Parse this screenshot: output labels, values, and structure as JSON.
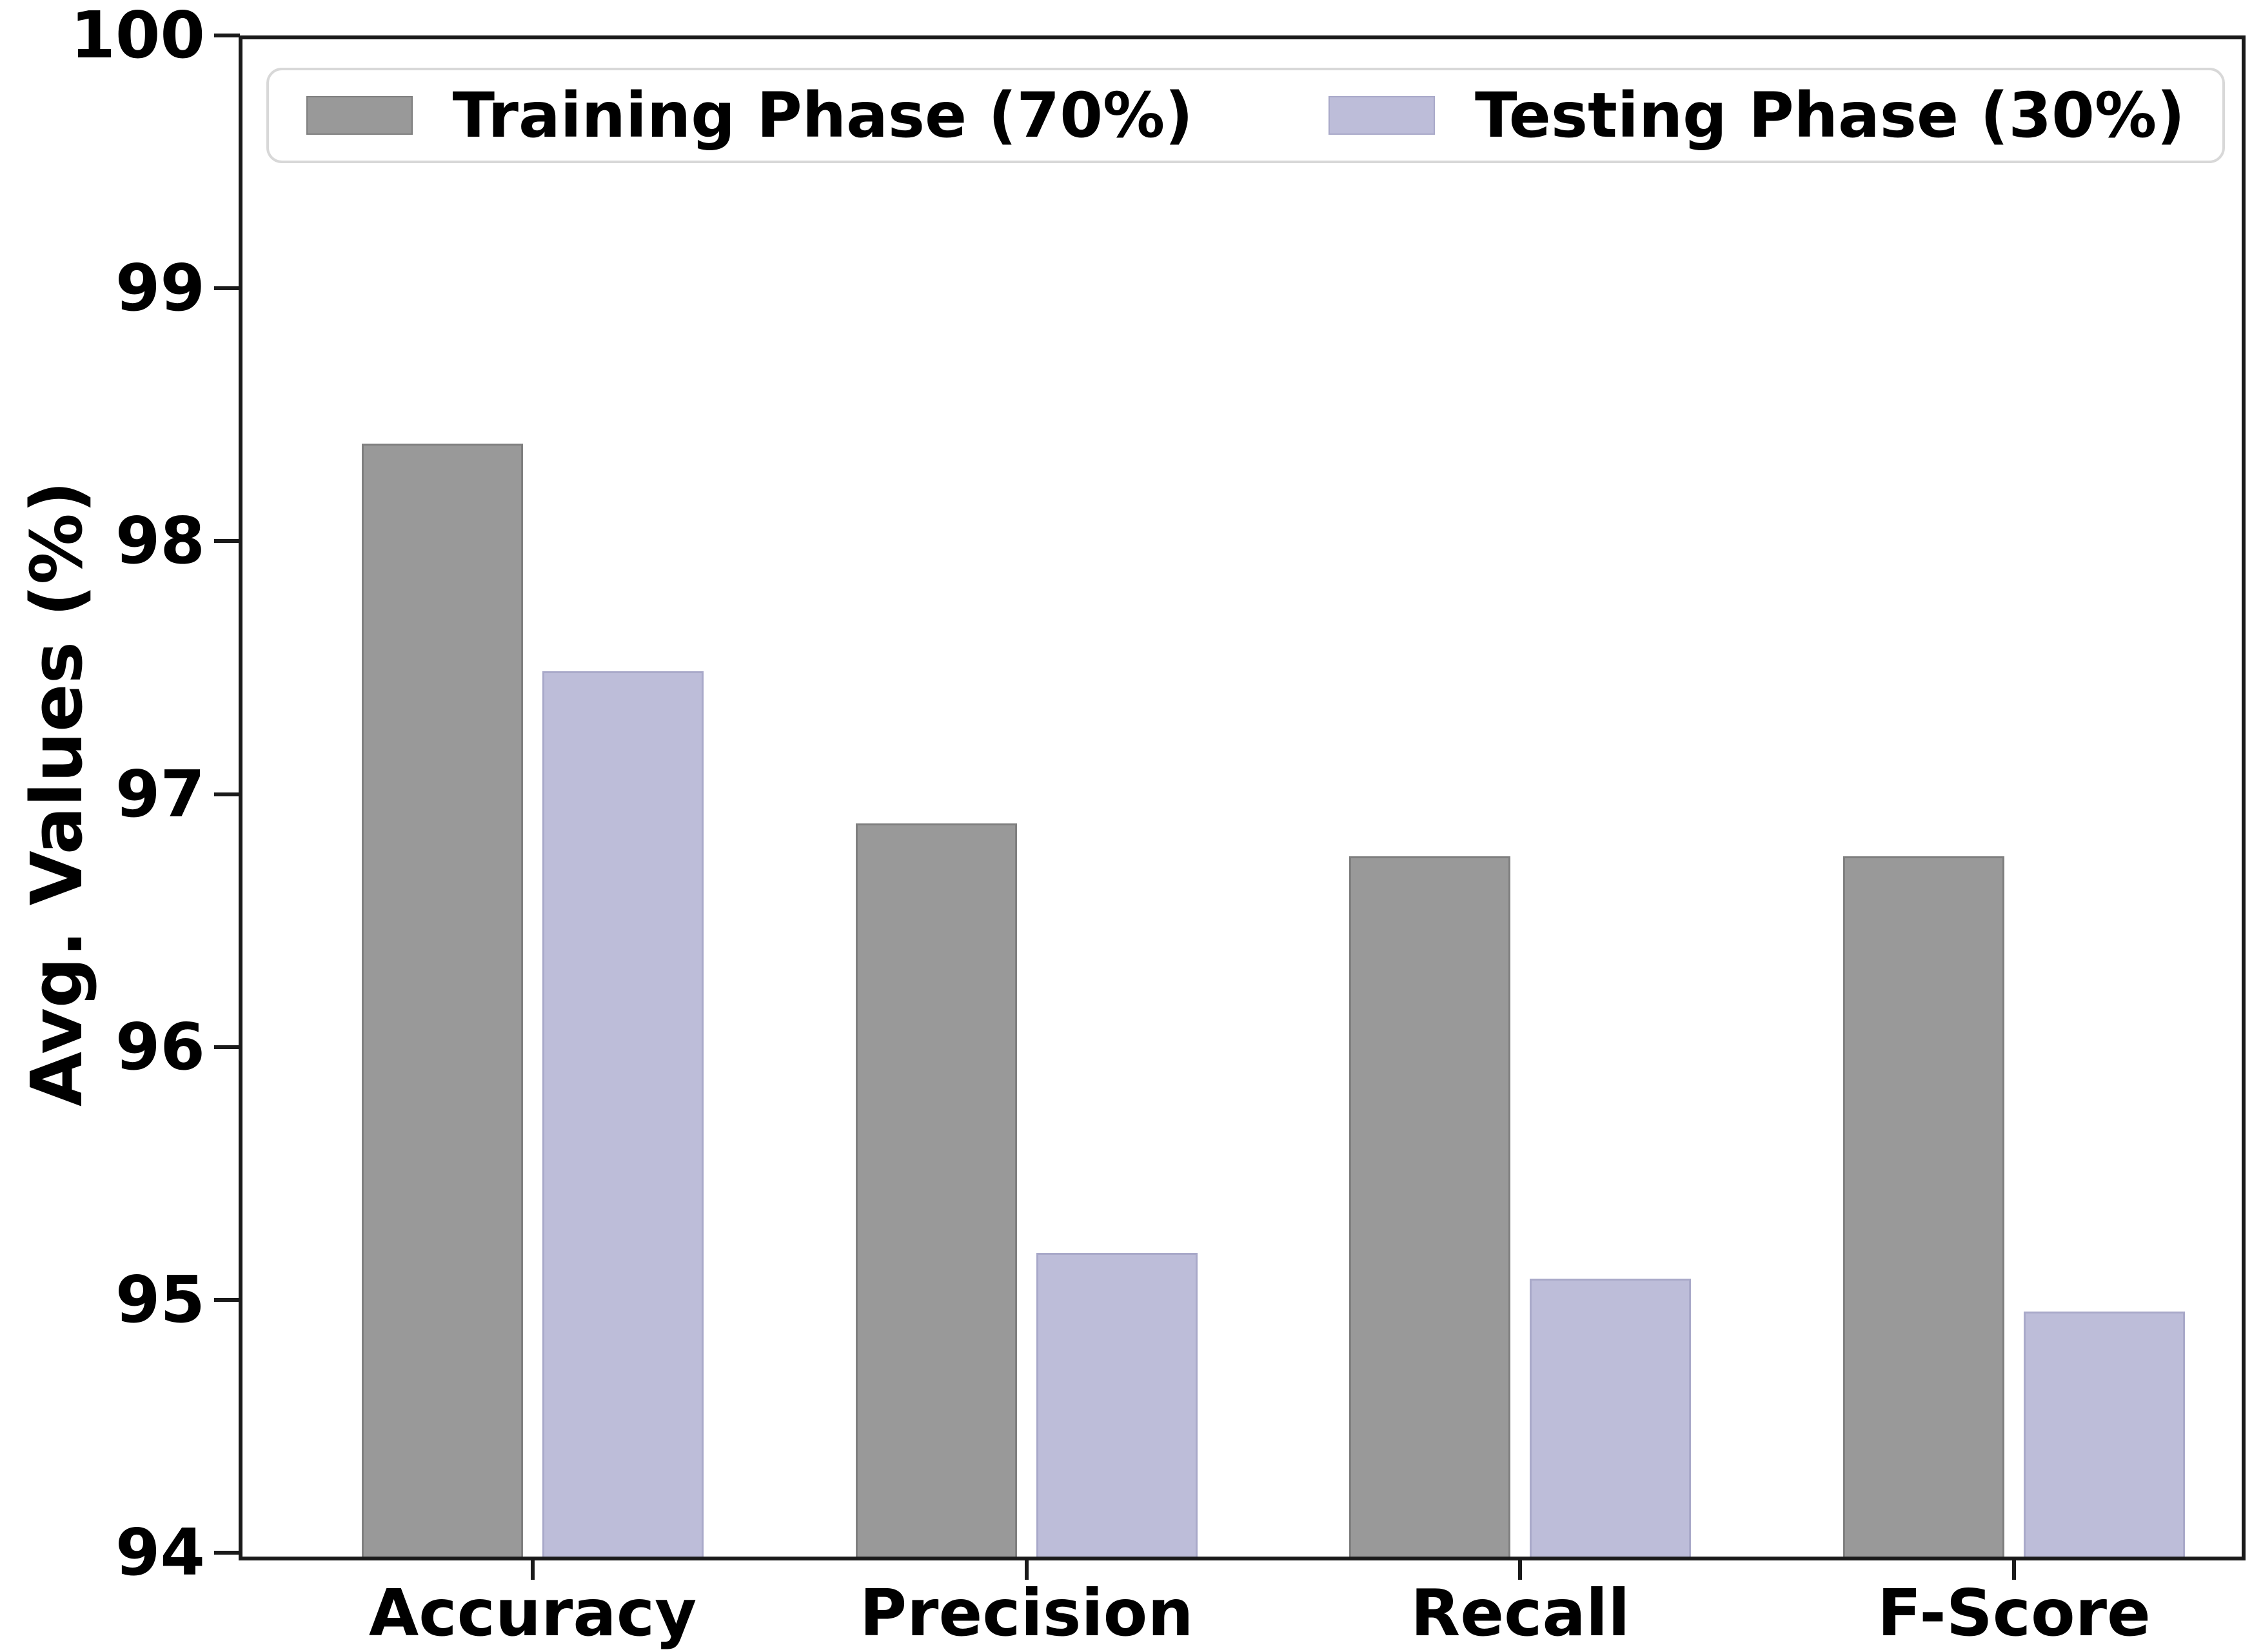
{
  "figure": {
    "background_color": "#ffffff",
    "spine_color": "#1a1a1a",
    "legend_border_color": "#d8d8d8"
  },
  "chart_data": {
    "type": "bar",
    "title": "",
    "xlabel": "",
    "ylabel": "Avg. Values (%)",
    "categories": [
      "Accuracy",
      "Precision",
      "Recall",
      "F-Score"
    ],
    "series": [
      {
        "name": "Training Phase (70%)",
        "color": "#999999",
        "edge_color": "#7f7f7f",
        "values": [
          98.4,
          96.9,
          96.77,
          96.77
        ]
      },
      {
        "name": "Testing Phase (30%)",
        "color": "#bdbdd9",
        "edge_color": "#a9a9c9",
        "values": [
          97.5,
          95.2,
          95.1,
          94.97
        ]
      }
    ],
    "ylim": [
      94,
      100
    ],
    "yticks": [
      100,
      99,
      98,
      97,
      96,
      95,
      94
    ],
    "ytick_labels": [
      "100",
      "99",
      "98",
      "97",
      "96",
      "95",
      "94"
    ],
    "grid": false,
    "legend_position": "upper right"
  }
}
